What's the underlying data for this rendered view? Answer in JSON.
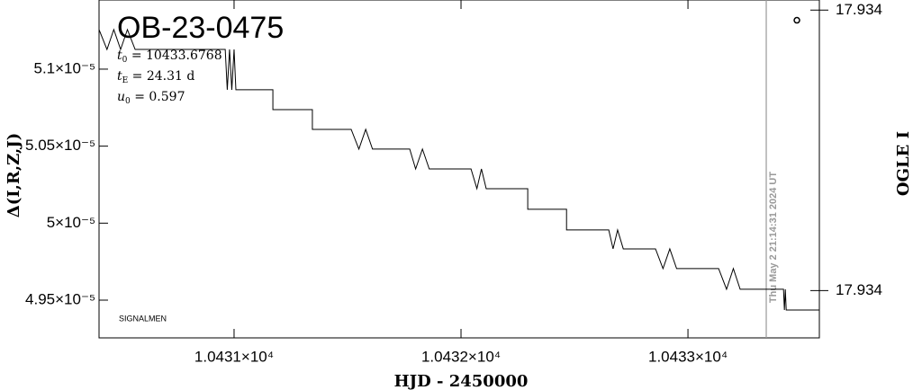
{
  "chart_data": {
    "type": "line",
    "title": "OB-23-0475",
    "params": [
      {
        "symbol": "t",
        "sub": "0",
        "text": " = 10433.6768"
      },
      {
        "symbol": "t",
        "sub": "E",
        "text": " = 24.31  d"
      },
      {
        "symbol": "u",
        "sub": "0",
        "text": " = 0.597"
      }
    ],
    "credit": "SIGNALMEN",
    "xlabel": "HJD - 2450000",
    "ylabel": "Δ(I,R,Z,J)",
    "y2label": "OGLE I",
    "xlim": [
      10430.405,
      10433.579
    ],
    "ylim": [
      4.9255e-05,
      5.1449e-05
    ],
    "y2lim": [
      17.9345,
      17.9335
    ],
    "xticks": [
      {
        "value": 10431,
        "label": "1.0431×10⁴"
      },
      {
        "value": 10432,
        "label": "1.0432×10⁴"
      },
      {
        "value": 10433,
        "label": "1.0433×10⁴"
      }
    ],
    "yticks": [
      {
        "value": 5.1e-05,
        "label": "5.1×10⁻⁵"
      },
      {
        "value": 5.05e-05,
        "label": "5.05×10⁻⁵"
      },
      {
        "value": 5e-05,
        "label": "5×10⁻⁵"
      },
      {
        "value": 4.95e-05,
        "label": "4.95×10⁻⁵"
      }
    ],
    "y2ticks": [
      {
        "value": 17.93353,
        "label": "17.934"
      },
      {
        "value": 17.93436,
        "label": "17.934"
      }
    ],
    "now_line": {
      "x": 10433.345,
      "label": "Thu May  2 21:14:31 2024 UT",
      "color": "#999999"
    },
    "series": [
      {
        "color": "#000000",
        "x": [
          10430.405,
          10430.44,
          10430.47,
          10430.5,
          10430.53,
          10430.564,
          10430.961,
          10430.97,
          10430.98,
          10430.99,
          10431.0,
          10431.008,
          10431.171,
          10431.171,
          10431.345,
          10431.345,
          10431.516,
          10431.55,
          10431.58,
          10431.61,
          10431.635,
          10431.774,
          10431.8,
          10431.83,
          10431.86,
          10431.885,
          10432.044,
          10432.07,
          10432.09,
          10432.111,
          10432.294,
          10432.294,
          10432.465,
          10432.465,
          10432.651,
          10432.67,
          10432.69,
          10432.715,
          10432.857,
          10432.89,
          10432.92,
          10432.95,
          10432.992,
          10433.135,
          10433.17,
          10433.2,
          10433.23,
          10433.25,
          10433.421,
          10433.425,
          10433.429,
          10433.433,
          10433.579
        ],
        "values": [
          5.1257e-05,
          5.1128e-05,
          5.1257e-05,
          5.1128e-05,
          5.1257e-05,
          5.1128e-05,
          5.1128e-05,
          5.0866e-05,
          5.1128e-05,
          5.0866e-05,
          5.1128e-05,
          5.0866e-05,
          5.0866e-05,
          5.0737e-05,
          5.0737e-05,
          5.0609e-05,
          5.0609e-05,
          5.0481e-05,
          5.0609e-05,
          5.0481e-05,
          5.0481e-05,
          5.0481e-05,
          5.0352e-05,
          5.0481e-05,
          5.0352e-05,
          5.0352e-05,
          5.0352e-05,
          5.0224e-05,
          5.0352e-05,
          5.0224e-05,
          5.0224e-05,
          5.009e-05,
          5.009e-05,
          4.9956e-05,
          4.9956e-05,
          4.9833e-05,
          4.9956e-05,
          4.9833e-05,
          4.9833e-05,
          4.9705e-05,
          4.9833e-05,
          4.9705e-05,
          4.9705e-05,
          4.9705e-05,
          4.9571e-05,
          4.9705e-05,
          4.9571e-05,
          4.9571e-05,
          4.9571e-05,
          4.9436e-05,
          4.9571e-05,
          4.9436e-05,
          4.9436e-05
        ]
      },
      {
        "color": "#000000",
        "axis": "y2",
        "marker": "circle",
        "x": [
          10433.48
        ],
        "values": [
          17.93356
        ]
      }
    ]
  }
}
